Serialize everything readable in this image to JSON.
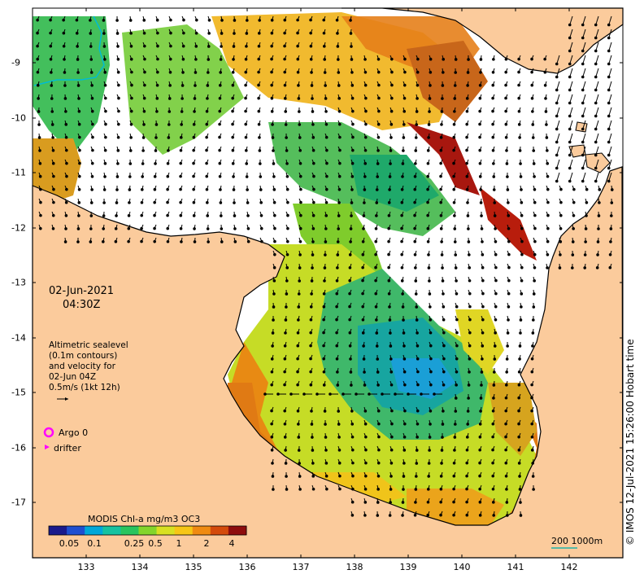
{
  "datetime": {
    "date": "02-Jun-2021",
    "time": "04:30Z"
  },
  "legend_text": [
    "Altimetric sealevel",
    "(0.1m contours)",
    "and velocity for",
    "02-Jun 04Z",
    "0.5m/s (1kt 12h)"
  ],
  "markers": {
    "argo": "Argo 0",
    "drifter": "drifter"
  },
  "colorbar": {
    "title": "MODIS Chl-a mg/m3 OC3",
    "ticks": [
      "0.05",
      "0.1",
      "0.25",
      "0.5",
      "1",
      "2",
      "4"
    ],
    "colors": [
      "#1a1a8c",
      "#1f4fd0",
      "#00a7d9",
      "#16c2a0",
      "#29c45e",
      "#84d52b",
      "#d8e021",
      "#f6c615",
      "#ef8a10",
      "#d44a0a",
      "#8e0d0d"
    ]
  },
  "axes": {
    "x_ticks": [
      "133",
      "134",
      "135",
      "136",
      "137",
      "138",
      "139",
      "140",
      "141",
      "142"
    ],
    "y_ticks": [
      "-9",
      "-10",
      "-11",
      "-12",
      "-13",
      "-14",
      "-15",
      "-16",
      "-17"
    ],
    "lon_range": [
      132.0,
      143.0
    ],
    "lat_range": [
      -17.8,
      -8.0
    ]
  },
  "scale_bar": {
    "label": "200  1000m"
  },
  "credit": "© IMOS 12-Jul-2021 15:26:00 Hobart time",
  "colors": {
    "land": "#fbcb9c",
    "sea": "#ffffff",
    "arrow": "#000000",
    "argo": "#ff00ff",
    "drifter": "#ff00ff",
    "scale": "#20b2aa",
    "river": "#00bcd4"
  }
}
